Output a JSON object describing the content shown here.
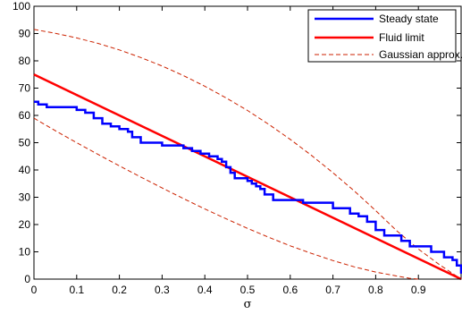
{
  "chart_data": {
    "type": "line",
    "xlabel": "σ",
    "ylabel": "",
    "xlim": [
      0,
      1
    ],
    "ylim": [
      0,
      100
    ],
    "xticks": [
      "0",
      "0.1",
      "0.2",
      "0.3",
      "0.4",
      "0.5",
      "0.6",
      "0.7",
      "0.8",
      "0.9"
    ],
    "yticks": [
      "0",
      "10",
      "20",
      "30",
      "40",
      "50",
      "60",
      "70",
      "80",
      "90",
      "100"
    ],
    "grid": false,
    "legend_position": "top-right",
    "series": [
      {
        "name": "Steady state",
        "color": "#0000ff",
        "style": "solid-step",
        "x": [
          0,
          0.01,
          0.02,
          0.03,
          0.04,
          0.06,
          0.1,
          0.12,
          0.14,
          0.16,
          0.18,
          0.2,
          0.22,
          0.23,
          0.25,
          0.29,
          0.3,
          0.33,
          0.35,
          0.37,
          0.39,
          0.41,
          0.43,
          0.44,
          0.45,
          0.46,
          0.47,
          0.5,
          0.51,
          0.52,
          0.53,
          0.54,
          0.56,
          0.6,
          0.63,
          0.7,
          0.72,
          0.74,
          0.76,
          0.78,
          0.8,
          0.82,
          0.86,
          0.88,
          0.9,
          0.93,
          0.96,
          0.98,
          0.99,
          1.0
        ],
        "y": [
          65,
          64,
          64,
          63,
          63,
          63,
          62,
          61,
          59,
          57,
          56,
          55,
          54,
          52,
          50,
          50,
          49,
          49,
          48,
          47,
          46,
          45,
          44,
          43,
          41,
          39,
          37,
          36,
          35,
          34,
          33,
          31,
          29,
          29,
          28,
          26,
          26,
          24,
          23,
          21,
          18,
          16,
          14,
          12,
          12,
          10,
          8,
          7,
          5,
          2
        ]
      },
      {
        "name": "Fluid limit",
        "color": "#ff0000",
        "style": "solid",
        "x": [
          0,
          1
        ],
        "y": [
          75,
          0
        ]
      },
      {
        "name": "Gaussian approx.",
        "color": "#cc2200",
        "style": "dashed",
        "x": [
          0,
          0.05,
          0.1,
          0.15,
          0.2,
          0.25,
          0.3,
          0.35,
          0.4,
          0.45,
          0.5,
          0.55,
          0.6,
          0.65,
          0.7,
          0.75,
          0.8,
          0.85,
          0.9,
          0.95,
          1.0
        ],
        "y": [
          91.5,
          90.1,
          88.4,
          86.4,
          84,
          81.2,
          78.1,
          74.6,
          70.7,
          66.4,
          61.8,
          56.7,
          51.2,
          45.3,
          39,
          32.3,
          25.1,
          17.6,
          11,
          5.2,
          0
        ]
      },
      {
        "name": "",
        "color": "#cc2200",
        "style": "dashed",
        "x": [
          0,
          0.05,
          0.1,
          0.15,
          0.2,
          0.25,
          0.3,
          0.35,
          0.4,
          0.45,
          0.5,
          0.55,
          0.6,
          0.65,
          0.7,
          0.75,
          0.8,
          0.85,
          0.88,
          0.9
        ],
        "y": [
          59,
          54.4,
          50,
          45.7,
          41.5,
          37.4,
          33.4,
          29.5,
          25.7,
          22.1,
          18.6,
          15.3,
          12.2,
          9.4,
          6.8,
          4.5,
          2.6,
          1.1,
          0.3,
          0
        ]
      }
    ]
  }
}
